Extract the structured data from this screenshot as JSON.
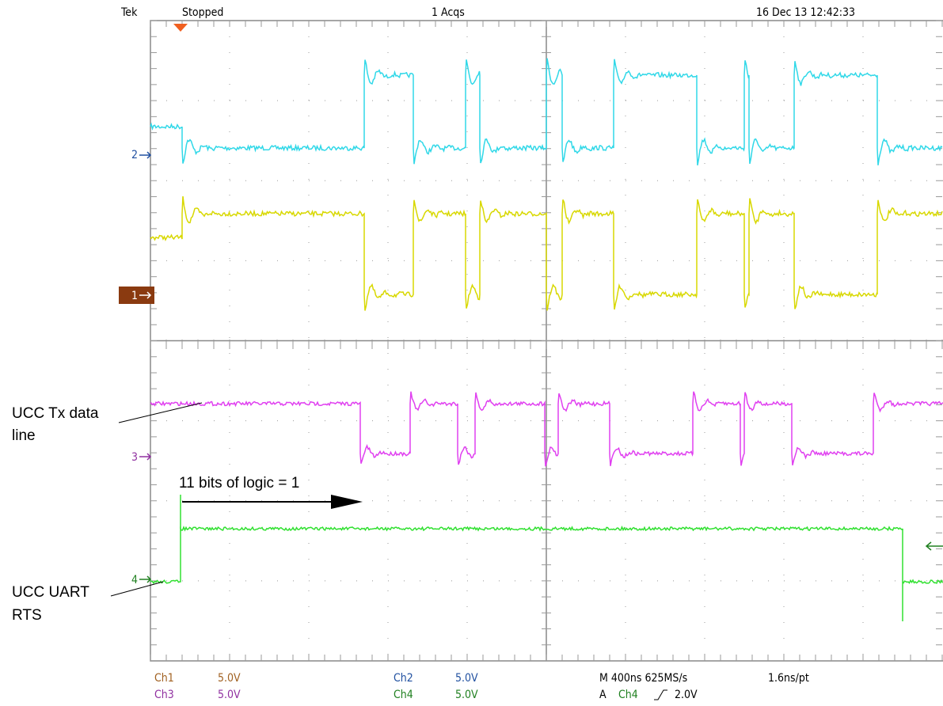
{
  "header": {
    "brand": "Tek",
    "status": "Stopped",
    "acquisitions": "1 Acqs",
    "timestamp": "16 Dec 13 12:42:33"
  },
  "channel_markers": [
    "2",
    "1",
    "3",
    "4"
  ],
  "annotations": {
    "tx_line": [
      "UCC Tx data",
      "line"
    ],
    "bits": "11 bits of logic = 1",
    "rts": [
      "UCC UART",
      "RTS"
    ]
  },
  "footer": {
    "ch1": {
      "label": "Ch1",
      "scale": "5.0V"
    },
    "ch3": {
      "label": "Ch3",
      "scale": "5.0V"
    },
    "ch2": {
      "label": "Ch2",
      "scale": "5.0V"
    },
    "ch4": {
      "label": "Ch4",
      "scale": "5.0V"
    },
    "timebase": "M 400ns 625MS/s",
    "resolution": "1.6ns/pt",
    "trigger": {
      "label": "A",
      "source": "Ch4",
      "level": "2.0V"
    }
  }
}
